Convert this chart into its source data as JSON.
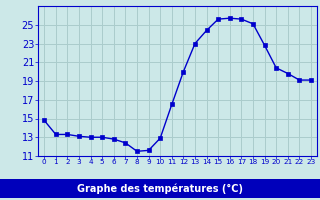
{
  "hours": [
    0,
    1,
    2,
    3,
    4,
    5,
    6,
    7,
    8,
    9,
    10,
    11,
    12,
    13,
    14,
    15,
    16,
    17,
    18,
    19,
    20,
    21,
    22,
    23
  ],
  "temps": [
    14.8,
    13.3,
    13.3,
    13.1,
    13.0,
    13.0,
    12.8,
    12.4,
    11.5,
    11.6,
    12.9,
    16.5,
    20.0,
    23.0,
    24.4,
    25.6,
    25.7,
    25.6,
    25.1,
    22.8,
    20.4,
    19.8,
    19.1,
    19.1
  ],
  "line_color": "#0000cc",
  "marker": "s",
  "marker_size": 2.5,
  "bg_color": "#cce8e8",
  "grid_color": "#aacccc",
  "xlabel": "Graphe des températures (°C)",
  "xlabel_bg": "#0000bb",
  "xlabel_color": "#ffffff",
  "ylim": [
    11,
    27
  ],
  "yticks": [
    11,
    13,
    15,
    17,
    19,
    21,
    23,
    25
  ],
  "xlim": [
    -0.5,
    23.5
  ],
  "xtick_labels": [
    "0",
    "1",
    "2",
    "3",
    "4",
    "5",
    "6",
    "7",
    "8",
    "9",
    "10",
    "11",
    "12",
    "13",
    "14",
    "15",
    "16",
    "17",
    "18",
    "19",
    "20",
    "21",
    "22",
    "23"
  ],
  "tick_label_color": "#0000cc",
  "axis_color": "#0000cc",
  "ylabel_fontsize": 7,
  "xlabel_fontsize": 7,
  "xtick_fontsize": 5.2,
  "ytick_fontsize": 7
}
